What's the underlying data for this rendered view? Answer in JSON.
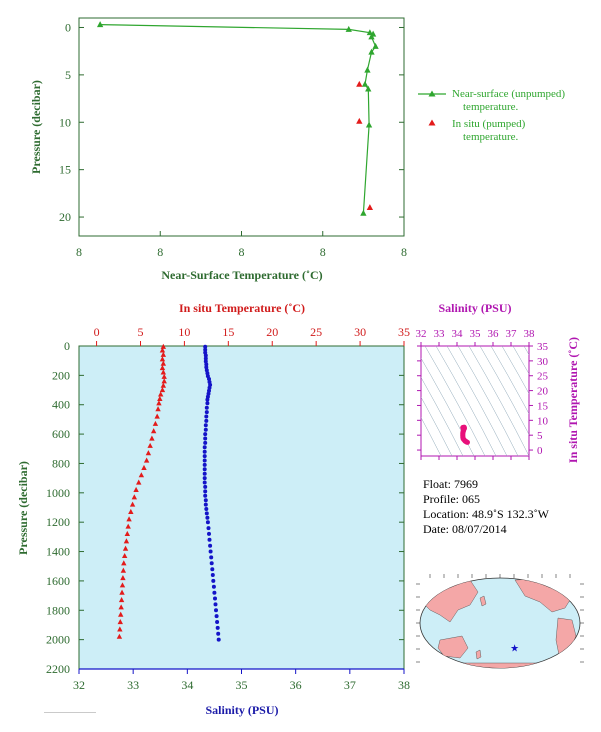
{
  "colors": {
    "green": "#2fa62f",
    "axis_green": "#2e6b30",
    "red": "#e31b1b",
    "blue": "#1414c8",
    "magenta": "#b016b0",
    "pink": "#e8107a",
    "plot_bg": "#cdeef7",
    "land": "#f4a7a7",
    "ocean": "#cdeef7"
  },
  "chart_data": [
    {
      "type": "line",
      "ylabel": "Pressure (decibar)",
      "xlabel": "Near-Surface Temperature (˚C)",
      "x_tick_labels": [
        "8",
        "8",
        "8",
        "8",
        "8"
      ],
      "y_ticks": [
        0,
        5,
        10,
        15,
        20
      ],
      "xlim": [
        7.0,
        11.0
      ],
      "ylim": [
        22,
        -1
      ],
      "invert_y": true,
      "legend_placement": "right",
      "series": [
        {
          "name": "Near-surface (unpumped) temperature.",
          "marker": "triangle",
          "line": true,
          "points": [
            [
              7.26,
              -0.3
            ],
            [
              10.32,
              0.2
            ],
            [
              10.58,
              0.55
            ],
            [
              10.62,
              0.7
            ],
            [
              10.6,
              1.0
            ],
            [
              10.65,
              2.0
            ],
            [
              10.6,
              2.6
            ],
            [
              10.55,
              4.5
            ],
            [
              10.52,
              6.0
            ],
            [
              10.56,
              6.5
            ],
            [
              10.57,
              10.3
            ],
            [
              10.5,
              19.6
            ]
          ]
        },
        {
          "name": "In situ (pumped) temperature.",
          "marker": "triangle",
          "line": false,
          "points": [
            [
              10.45,
              6.0
            ],
            [
              10.45,
              9.9
            ],
            [
              10.58,
              19.0
            ]
          ]
        }
      ]
    },
    {
      "type": "scatter",
      "ylabel": "Pressure (decibar)",
      "y_ticks": [
        0,
        200,
        400,
        600,
        800,
        1000,
        1200,
        1400,
        1600,
        1800,
        2000,
        2200
      ],
      "ylim": [
        2200,
        0
      ],
      "top_axis": {
        "label": "In situ Temperature (˚C)",
        "ticks": [
          0,
          5,
          10,
          15,
          20,
          25,
          30,
          35
        ],
        "range": [
          -2,
          35
        ]
      },
      "bottom_axis": {
        "label": "Salinity (PSU)",
        "ticks": [
          32,
          33,
          34,
          35,
          36,
          37,
          38
        ],
        "range": [
          32,
          38
        ]
      },
      "series": [
        {
          "name": "In situ Temperature",
          "axis": "top",
          "marker": "triangle",
          "points": [
            [
              7.6,
              5
            ],
            [
              7.5,
              30
            ],
            [
              7.6,
              60
            ],
            [
              7.5,
              90
            ],
            [
              7.6,
              120
            ],
            [
              7.5,
              150
            ],
            [
              7.6,
              180
            ],
            [
              7.7,
              210
            ],
            [
              7.7,
              240
            ],
            [
              7.6,
              270
            ],
            [
              7.5,
              300
            ],
            [
              7.3,
              330
            ],
            [
              7.2,
              360
            ],
            [
              7.1,
              390
            ],
            [
              7.0,
              430
            ],
            [
              6.9,
              480
            ],
            [
              6.7,
              530
            ],
            [
              6.5,
              580
            ],
            [
              6.3,
              630
            ],
            [
              6.1,
              680
            ],
            [
              5.9,
              730
            ],
            [
              5.7,
              780
            ],
            [
              5.4,
              830
            ],
            [
              5.1,
              880
            ],
            [
              4.8,
              930
            ],
            [
              4.5,
              980
            ],
            [
              4.3,
              1030
            ],
            [
              4.1,
              1080
            ],
            [
              3.9,
              1130
            ],
            [
              3.7,
              1180
            ],
            [
              3.6,
              1230
            ],
            [
              3.5,
              1280
            ],
            [
              3.4,
              1330
            ],
            [
              3.3,
              1380
            ],
            [
              3.2,
              1430
            ],
            [
              3.1,
              1480
            ],
            [
              3.05,
              1530
            ],
            [
              3.0,
              1580
            ],
            [
              2.95,
              1630
            ],
            [
              2.9,
              1680
            ],
            [
              2.85,
              1730
            ],
            [
              2.8,
              1780
            ],
            [
              2.75,
              1830
            ],
            [
              2.7,
              1880
            ],
            [
              2.65,
              1930
            ],
            [
              2.6,
              1980
            ]
          ]
        },
        {
          "name": "Salinity",
          "axis": "bottom",
          "marker": "dot",
          "points": [
            [
              34.33,
              5
            ],
            [
              34.33,
              25
            ],
            [
              34.33,
              45
            ],
            [
              34.34,
              65
            ],
            [
              34.34,
              85
            ],
            [
              34.34,
              105
            ],
            [
              34.35,
              125
            ],
            [
              34.35,
              145
            ],
            [
              34.36,
              165
            ],
            [
              34.37,
              185
            ],
            [
              34.38,
              205
            ],
            [
              34.4,
              225
            ],
            [
              34.41,
              245
            ],
            [
              34.42,
              265
            ],
            [
              34.41,
              285
            ],
            [
              34.4,
              305
            ],
            [
              34.39,
              325
            ],
            [
              34.38,
              345
            ],
            [
              34.37,
              365
            ],
            [
              34.37,
              390
            ],
            [
              34.36,
              420
            ],
            [
              34.36,
              450
            ],
            [
              34.35,
              480
            ],
            [
              34.35,
              510
            ],
            [
              34.34,
              540
            ],
            [
              34.34,
              570
            ],
            [
              34.33,
              600
            ],
            [
              34.33,
              630
            ],
            [
              34.33,
              660
            ],
            [
              34.32,
              690
            ],
            [
              34.32,
              720
            ],
            [
              34.32,
              750
            ],
            [
              34.32,
              780
            ],
            [
              34.32,
              810
            ],
            [
              34.32,
              840
            ],
            [
              34.32,
              870
            ],
            [
              34.32,
              900
            ],
            [
              34.32,
              930
            ],
            [
              34.33,
              960
            ],
            [
              34.33,
              990
            ],
            [
              34.33,
              1020
            ],
            [
              34.34,
              1050
            ],
            [
              34.34,
              1080
            ],
            [
              34.35,
              1110
            ],
            [
              34.36,
              1140
            ],
            [
              34.37,
              1170
            ],
            [
              34.38,
              1200
            ],
            [
              34.39,
              1240
            ],
            [
              34.4,
              1280
            ],
            [
              34.41,
              1320
            ],
            [
              34.42,
              1360
            ],
            [
              34.43,
              1400
            ],
            [
              34.44,
              1440
            ],
            [
              34.45,
              1480
            ],
            [
              34.46,
              1520
            ],
            [
              34.47,
              1560
            ],
            [
              34.48,
              1600
            ],
            [
              34.49,
              1640
            ],
            [
              34.5,
              1680
            ],
            [
              34.51,
              1720
            ],
            [
              34.52,
              1760
            ],
            [
              34.53,
              1800
            ],
            [
              34.54,
              1840
            ],
            [
              34.55,
              1880
            ],
            [
              34.56,
              1920
            ],
            [
              34.57,
              1960
            ],
            [
              34.58,
              2000
            ]
          ]
        }
      ]
    },
    {
      "type": "scatter",
      "xlabel": "Salinity (PSU)",
      "ylabel": "In situ Temperature (˚C)",
      "x_ticks": [
        32,
        33,
        34,
        35,
        36,
        37,
        38
      ],
      "y_ticks": [
        0,
        5,
        10,
        15,
        20,
        25,
        30,
        35
      ],
      "xlim": [
        32,
        38
      ],
      "ylim": [
        -2,
        35
      ],
      "series": [
        {
          "name": "T-S",
          "marker": "dot",
          "points": [
            [
              34.33,
              7.6
            ],
            [
              34.33,
              7.5
            ],
            [
              34.36,
              7.6
            ],
            [
              34.4,
              7.7
            ],
            [
              34.41,
              7.3
            ],
            [
              34.38,
              7.0
            ],
            [
              34.36,
              6.7
            ],
            [
              34.35,
              6.3
            ],
            [
              34.33,
              5.9
            ],
            [
              34.32,
              5.4
            ],
            [
              34.32,
              4.8
            ],
            [
              34.33,
              4.3
            ],
            [
              34.34,
              3.9
            ],
            [
              34.37,
              3.6
            ],
            [
              34.41,
              3.3
            ],
            [
              34.45,
              3.05
            ],
            [
              34.49,
              2.9
            ],
            [
              34.53,
              2.75
            ],
            [
              34.58,
              2.6
            ]
          ]
        }
      ]
    }
  ],
  "info": {
    "float": "Float:  7969",
    "profile": "Profile:  065",
    "location": "Location:  48.9˚S  132.3˚W",
    "date": "Date:  08/07/2014"
  },
  "map": {
    "marker_lon": -132.3,
    "marker_lat": -48.9
  }
}
